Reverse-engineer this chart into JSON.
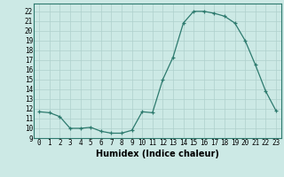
{
  "xlabel": "Humidex (Indice chaleur)",
  "x": [
    0,
    1,
    2,
    3,
    4,
    5,
    6,
    7,
    8,
    9,
    10,
    11,
    12,
    13,
    14,
    15,
    16,
    17,
    18,
    19,
    20,
    21,
    22,
    23
  ],
  "y": [
    11.7,
    11.6,
    11.2,
    10.0,
    10.0,
    10.1,
    9.7,
    9.5,
    9.5,
    9.8,
    11.7,
    11.6,
    15.0,
    17.3,
    20.8,
    22.0,
    22.0,
    21.8,
    21.5,
    20.8,
    19.0,
    16.5,
    13.8,
    11.8
  ],
  "xlim": [
    -0.5,
    23.5
  ],
  "ylim": [
    9,
    22.8
  ],
  "yticks": [
    9,
    10,
    11,
    12,
    13,
    14,
    15,
    16,
    17,
    18,
    19,
    20,
    21,
    22
  ],
  "xticks": [
    0,
    1,
    2,
    3,
    4,
    5,
    6,
    7,
    8,
    9,
    10,
    11,
    12,
    13,
    14,
    15,
    16,
    17,
    18,
    19,
    20,
    21,
    22,
    23
  ],
  "line_color": "#2d7a6e",
  "bg_color": "#cce9e5",
  "grid_color": "#aed0cc",
  "xlabel_fontsize": 7,
  "tick_fontsize": 5.5
}
